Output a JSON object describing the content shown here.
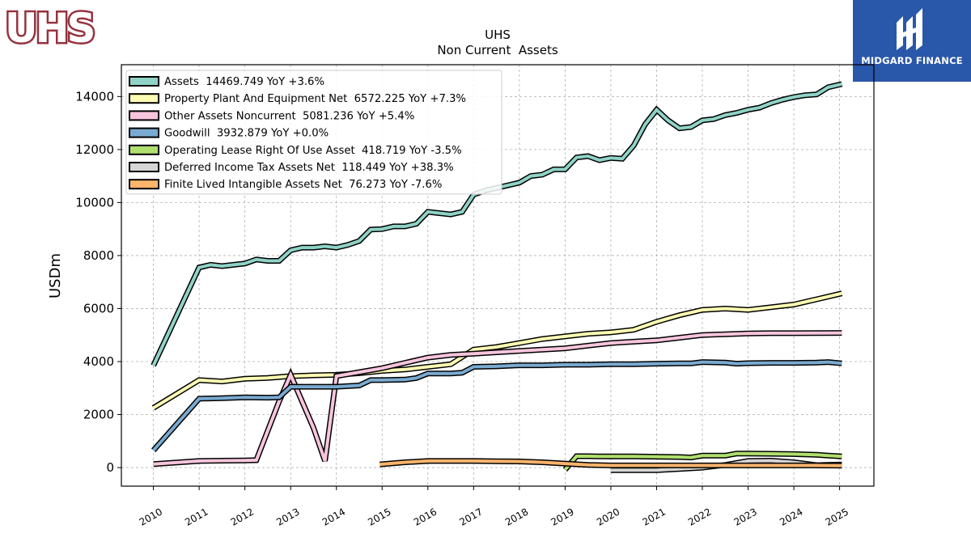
{
  "logos": {
    "company_logo_text": "UHS",
    "brand_text": "MIDGARD FINANCE"
  },
  "colors": {
    "assets": "#8fd3c6",
    "ppe": "#fdfdb4",
    "other": "#f8c5dd",
    "goodwill": "#7aaad0",
    "lease": "#b0df6e",
    "deferred": "#d6d6d6",
    "intangible": "#fdb46b",
    "brand_blue": "#2957a9",
    "uhs_red": "#96323f"
  },
  "chart_data": {
    "type": "line",
    "title": "UHS",
    "subtitle": "Non Current  Assets",
    "ylabel": "USDm",
    "xlabel": "",
    "xlim": [
      2009.3,
      2025.75
    ],
    "ylim": [
      -700,
      15200
    ],
    "x_ticks": [
      2010,
      2011,
      2012,
      2013,
      2014,
      2015,
      2016,
      2017,
      2018,
      2019,
      2020,
      2021,
      2022,
      2023,
      2024,
      2025
    ],
    "y_ticks": [
      0,
      2000,
      4000,
      6000,
      8000,
      10000,
      12000,
      14000
    ],
    "grid": true,
    "legend_position": "top-left",
    "series": [
      {
        "name": "Assets  14469.749 YoY +3.6%",
        "color_key": "assets",
        "points": [
          [
            2010.0,
            3850
          ],
          [
            2011.0,
            7550
          ],
          [
            2011.25,
            7650
          ],
          [
            2011.5,
            7600
          ],
          [
            2011.75,
            7650
          ],
          [
            2012.0,
            7700
          ],
          [
            2012.25,
            7850
          ],
          [
            2012.5,
            7800
          ],
          [
            2012.75,
            7800
          ],
          [
            2013.0,
            8200
          ],
          [
            2013.25,
            8300
          ],
          [
            2013.5,
            8300
          ],
          [
            2013.75,
            8350
          ],
          [
            2014.0,
            8300
          ],
          [
            2014.25,
            8400
          ],
          [
            2014.5,
            8550
          ],
          [
            2014.75,
            8980
          ],
          [
            2015.0,
            9000
          ],
          [
            2015.25,
            9100
          ],
          [
            2015.5,
            9100
          ],
          [
            2015.75,
            9200
          ],
          [
            2016.0,
            9650
          ],
          [
            2016.25,
            9600
          ],
          [
            2016.5,
            9550
          ],
          [
            2016.75,
            9650
          ],
          [
            2017.0,
            10300
          ],
          [
            2017.25,
            10450
          ],
          [
            2017.5,
            10550
          ],
          [
            2017.75,
            10650
          ],
          [
            2018.0,
            10750
          ],
          [
            2018.25,
            11000
          ],
          [
            2018.5,
            11050
          ],
          [
            2018.75,
            11250
          ],
          [
            2019.0,
            11250
          ],
          [
            2019.25,
            11700
          ],
          [
            2019.5,
            11750
          ],
          [
            2019.75,
            11600
          ],
          [
            2020.0,
            11680
          ],
          [
            2020.25,
            11650
          ],
          [
            2020.5,
            12150
          ],
          [
            2020.75,
            12950
          ],
          [
            2021.0,
            13500
          ],
          [
            2021.25,
            13100
          ],
          [
            2021.5,
            12800
          ],
          [
            2021.75,
            12850
          ],
          [
            2022.0,
            13100
          ],
          [
            2022.25,
            13150
          ],
          [
            2022.5,
            13300
          ],
          [
            2022.75,
            13380
          ],
          [
            2023.0,
            13500
          ],
          [
            2023.25,
            13580
          ],
          [
            2023.5,
            13750
          ],
          [
            2023.75,
            13880
          ],
          [
            2024.0,
            13980
          ],
          [
            2024.25,
            14050
          ],
          [
            2024.5,
            14080
          ],
          [
            2024.75,
            14350
          ],
          [
            2025.05,
            14470
          ]
        ]
      },
      {
        "name": "Property Plant And Equipment Net  6572.225 YoY +7.3%",
        "color_key": "ppe",
        "points": [
          [
            2010.0,
            2250
          ],
          [
            2011.0,
            3300
          ],
          [
            2011.5,
            3250
          ],
          [
            2012.0,
            3350
          ],
          [
            2012.5,
            3380
          ],
          [
            2013.0,
            3450
          ],
          [
            2013.5,
            3480
          ],
          [
            2014.0,
            3500
          ],
          [
            2014.5,
            3560
          ],
          [
            2015.0,
            3650
          ],
          [
            2015.5,
            3700
          ],
          [
            2016.0,
            3800
          ],
          [
            2016.5,
            3900
          ],
          [
            2017.0,
            4450
          ],
          [
            2017.5,
            4550
          ],
          [
            2018.0,
            4700
          ],
          [
            2018.5,
            4850
          ],
          [
            2019.0,
            4950
          ],
          [
            2019.5,
            5050
          ],
          [
            2020.0,
            5100
          ],
          [
            2020.5,
            5200
          ],
          [
            2021.0,
            5500
          ],
          [
            2021.5,
            5750
          ],
          [
            2022.0,
            5950
          ],
          [
            2022.5,
            6000
          ],
          [
            2023.0,
            5950
          ],
          [
            2023.5,
            6050
          ],
          [
            2024.0,
            6150
          ],
          [
            2024.5,
            6350
          ],
          [
            2025.05,
            6572
          ]
        ]
      },
      {
        "name": "Other Assets Noncurrent  5081.236 YoY +5.4%",
        "color_key": "other",
        "points": [
          [
            2010.0,
            130
          ],
          [
            2011.0,
            250
          ],
          [
            2011.5,
            260
          ],
          [
            2012.0,
            270
          ],
          [
            2012.25,
            280
          ],
          [
            2012.75,
            2500
          ],
          [
            2013.0,
            3500
          ],
          [
            2013.5,
            1500
          ],
          [
            2013.75,
            250
          ],
          [
            2014.0,
            3450
          ],
          [
            2014.5,
            3600
          ],
          [
            2015.0,
            3750
          ],
          [
            2015.5,
            3950
          ],
          [
            2016.0,
            4150
          ],
          [
            2016.5,
            4250
          ],
          [
            2017.0,
            4300
          ],
          [
            2017.5,
            4350
          ],
          [
            2018.0,
            4400
          ],
          [
            2018.5,
            4450
          ],
          [
            2019.0,
            4500
          ],
          [
            2019.5,
            4600
          ],
          [
            2020.0,
            4700
          ],
          [
            2020.5,
            4750
          ],
          [
            2021.0,
            4800
          ],
          [
            2021.5,
            4900
          ],
          [
            2022.0,
            5000
          ],
          [
            2022.5,
            5030
          ],
          [
            2023.0,
            5060
          ],
          [
            2023.5,
            5070
          ],
          [
            2024.0,
            5070
          ],
          [
            2024.5,
            5075
          ],
          [
            2025.05,
            5081
          ]
        ]
      },
      {
        "name": "Goodwill  3932.879 YoY +0.0%",
        "color_key": "goodwill",
        "points": [
          [
            2010.0,
            650
          ],
          [
            2011.0,
            2600
          ],
          [
            2011.5,
            2620
          ],
          [
            2012.0,
            2650
          ],
          [
            2012.5,
            2640
          ],
          [
            2012.75,
            2650
          ],
          [
            2013.0,
            3050
          ],
          [
            2013.5,
            3050
          ],
          [
            2014.0,
            3050
          ],
          [
            2014.5,
            3100
          ],
          [
            2014.75,
            3300
          ],
          [
            2015.0,
            3300
          ],
          [
            2015.5,
            3320
          ],
          [
            2015.75,
            3380
          ],
          [
            2016.0,
            3550
          ],
          [
            2016.5,
            3550
          ],
          [
            2016.75,
            3580
          ],
          [
            2017.0,
            3800
          ],
          [
            2017.5,
            3820
          ],
          [
            2018.0,
            3860
          ],
          [
            2018.5,
            3860
          ],
          [
            2019.0,
            3880
          ],
          [
            2019.5,
            3880
          ],
          [
            2020.0,
            3900
          ],
          [
            2020.5,
            3900
          ],
          [
            2021.0,
            3920
          ],
          [
            2021.5,
            3930
          ],
          [
            2021.75,
            3930
          ],
          [
            2022.0,
            3980
          ],
          [
            2022.5,
            3960
          ],
          [
            2022.75,
            3920
          ],
          [
            2023.0,
            3940
          ],
          [
            2023.5,
            3950
          ],
          [
            2024.0,
            3950
          ],
          [
            2024.5,
            3960
          ],
          [
            2024.75,
            3980
          ],
          [
            2025.05,
            3933
          ]
        ]
      },
      {
        "name": "Operating Lease Right Of Use Asset  418.719 YoY -3.5%",
        "color_key": "lease",
        "points": [
          [
            2019.0,
            -80
          ],
          [
            2019.25,
            430
          ],
          [
            2019.5,
            430
          ],
          [
            2019.75,
            420
          ],
          [
            2020.0,
            420
          ],
          [
            2020.5,
            420
          ],
          [
            2021.0,
            410
          ],
          [
            2021.5,
            400
          ],
          [
            2021.75,
            380
          ],
          [
            2022.0,
            450
          ],
          [
            2022.5,
            450
          ],
          [
            2022.75,
            530
          ],
          [
            2023.0,
            530
          ],
          [
            2023.5,
            520
          ],
          [
            2024.0,
            510
          ],
          [
            2024.5,
            480
          ],
          [
            2025.05,
            419
          ]
        ]
      },
      {
        "name": "Deferred Income Tax Assets Net  118.449 YoY +38.3%",
        "color_key": "deferred",
        "points": [
          [
            2020.0,
            -100
          ],
          [
            2020.5,
            -100
          ],
          [
            2021.0,
            -100
          ],
          [
            2021.5,
            -50
          ],
          [
            2022.0,
            0
          ],
          [
            2022.5,
            100
          ],
          [
            2023.0,
            250
          ],
          [
            2023.5,
            260
          ],
          [
            2024.0,
            200
          ],
          [
            2024.5,
            90
          ],
          [
            2025.05,
            118
          ]
        ]
      },
      {
        "name": "Finite Lived Intangible Assets Net  76.273 YoY -7.6%",
        "color_key": "intangible",
        "points": [
          [
            2014.95,
            120
          ],
          [
            2015.5,
            200
          ],
          [
            2016.0,
            250
          ],
          [
            2016.5,
            250
          ],
          [
            2017.0,
            250
          ],
          [
            2017.5,
            240
          ],
          [
            2018.0,
            230
          ],
          [
            2018.5,
            200
          ],
          [
            2019.0,
            150
          ],
          [
            2019.5,
            100
          ],
          [
            2020.0,
            80
          ],
          [
            2020.5,
            80
          ],
          [
            2021.0,
            80
          ],
          [
            2021.5,
            80
          ],
          [
            2022.0,
            80
          ],
          [
            2022.5,
            80
          ],
          [
            2023.0,
            80
          ],
          [
            2023.5,
            80
          ],
          [
            2024.0,
            80
          ],
          [
            2024.5,
            80
          ],
          [
            2025.05,
            76
          ]
        ]
      }
    ]
  }
}
